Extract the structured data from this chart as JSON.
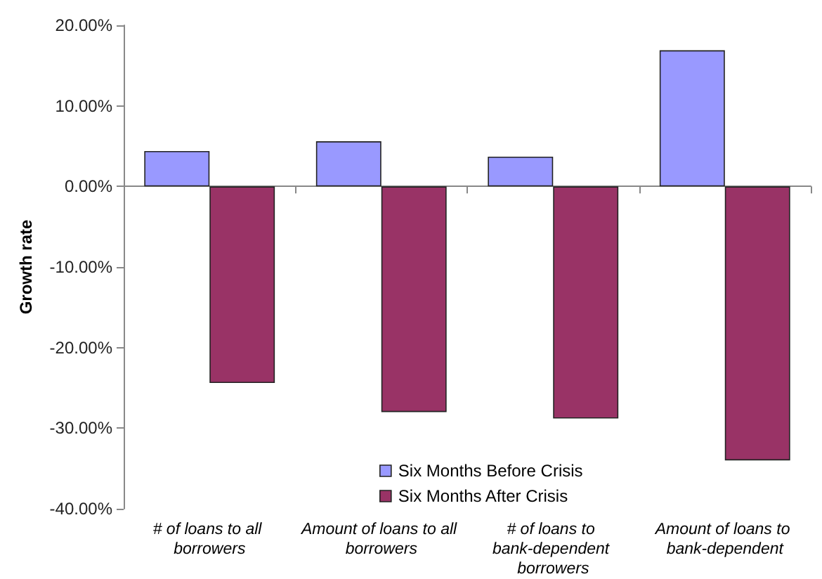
{
  "chart_data": {
    "type": "bar",
    "ylabel": "Growth rate",
    "categories": [
      "# of loans to all borrowers",
      "Amount of loans to all borrowers",
      "# of loans to bank-dependent borrowers",
      "Amount of loans to bank-dependent"
    ],
    "series": [
      {
        "name": "Six Months Before Crisis",
        "color": "#9999ff",
        "values": [
          4.4,
          5.6,
          3.7,
          16.9
        ]
      },
      {
        "name": "Six Months After Crisis",
        "color": "#993366",
        "values": [
          -24.4,
          -28.0,
          -28.8,
          -34.0
        ]
      }
    ],
    "ylim": [
      -40,
      20
    ],
    "yticks": [
      {
        "value": -40,
        "label": "-40.00%"
      },
      {
        "value": -30,
        "label": "-30.00%"
      },
      {
        "value": -20,
        "label": "-20.00%"
      },
      {
        "value": -10,
        "label": "-10.00%"
      },
      {
        "value": 0,
        "label": "0.00%"
      },
      {
        "value": 10,
        "label": "10.00%"
      },
      {
        "value": 20,
        "label": "20.00%"
      }
    ],
    "legend": "bottom"
  }
}
